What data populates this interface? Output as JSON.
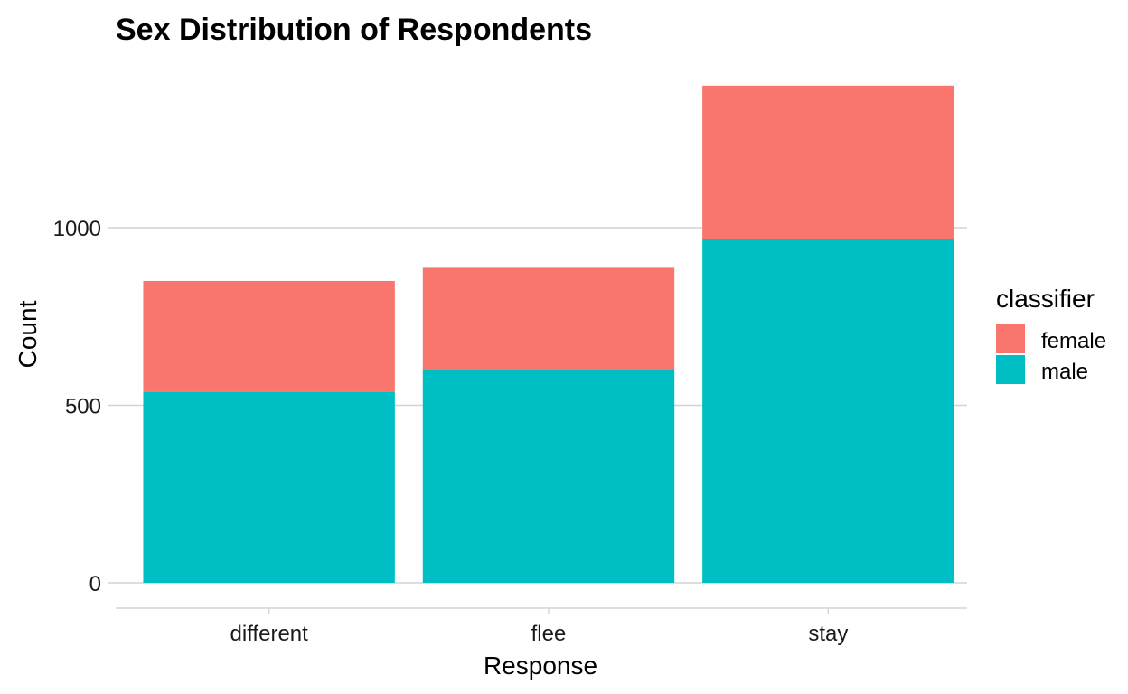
{
  "chart_data": {
    "type": "bar",
    "stacked": true,
    "title": "Sex Distribution of Respondents",
    "xlabel": "Response",
    "ylabel": "Count",
    "categories": [
      "different",
      "flee",
      "stay"
    ],
    "series": [
      {
        "name": "female",
        "values": [
          313,
          287,
          432
        ],
        "color": "#F8766D"
      },
      {
        "name": "male",
        "values": [
          537,
          600,
          968
        ],
        "color": "#00BFC4"
      }
    ],
    "yticks": [
      0,
      500,
      1000
    ],
    "ylim": [
      0,
      1400
    ],
    "legend": {
      "title": "classifier",
      "position": "right"
    },
    "grid": true
  }
}
